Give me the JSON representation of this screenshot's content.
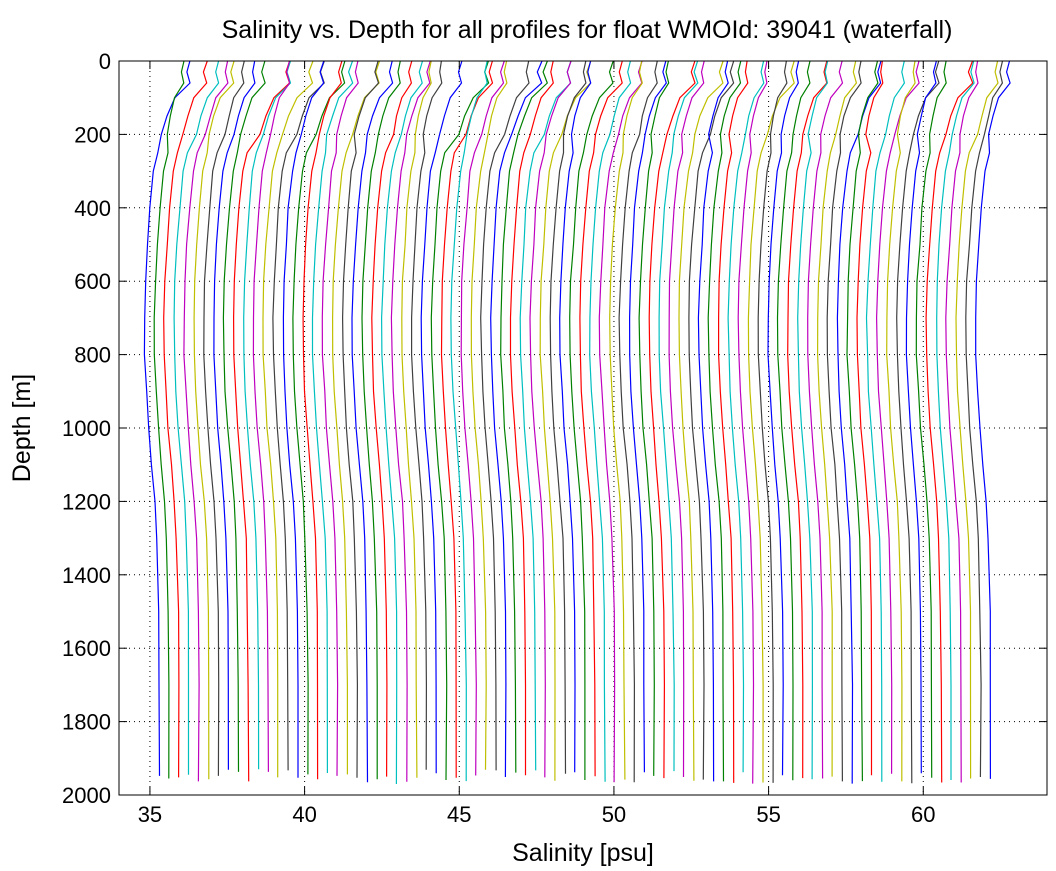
{
  "chart_data": {
    "type": "line",
    "title": "Salinity vs. Depth for all profiles for float WMOId: 39041 (waterfall)",
    "xlabel": "Salinity [psu]",
    "ylabel": "Depth [m]",
    "xlim": [
      34,
      64
    ],
    "ylim": [
      0,
      2000
    ],
    "y_reversed": true,
    "x_ticks": [
      "35",
      "40",
      "45",
      "50",
      "55",
      "60"
    ],
    "y_ticks": [
      "0",
      "200",
      "400",
      "600",
      "800",
      "1000",
      "1200",
      "1400",
      "1600",
      "1800",
      "2000"
    ],
    "grid": true,
    "grid_style": "dotted",
    "waterfall": {
      "profile_count": 85,
      "first_deep_salinity": 35.0,
      "offset_per_profile": 0.32,
      "max_depth": 1970
    },
    "base_profile": {
      "depth": [
        0,
        30,
        60,
        100,
        150,
        200,
        250,
        300,
        400,
        500,
        600,
        700,
        800,
        900,
        1000,
        1100,
        1200,
        1300,
        1500,
        1700,
        1970
      ],
      "salinity_anomaly": [
        1.15,
        1.05,
        1.15,
        0.75,
        0.55,
        0.4,
        0.25,
        0.12,
        0.0,
        -0.08,
        -0.15,
        -0.18,
        -0.17,
        -0.12,
        -0.05,
        0.05,
        0.15,
        0.22,
        0.28,
        0.3,
        0.3
      ]
    },
    "series_colors": [
      "#0000ff",
      "#008000",
      "#ff0000",
      "#00bfbf",
      "#bf00bf",
      "#bfbf00",
      "#404040"
    ]
  }
}
